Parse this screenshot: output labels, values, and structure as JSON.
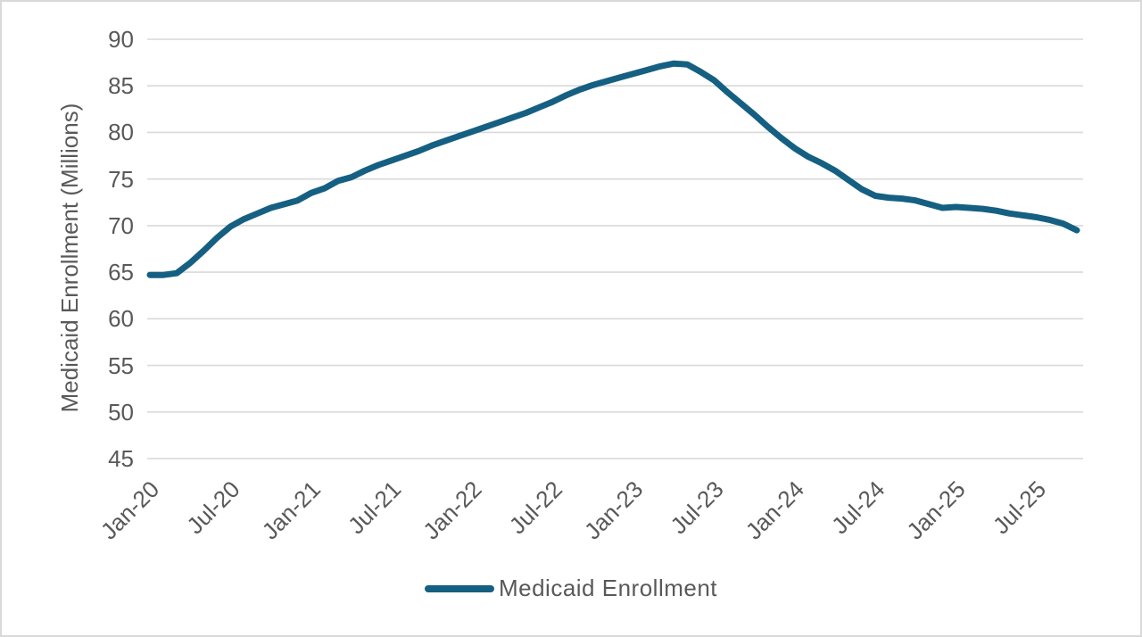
{
  "colors": {
    "line": "#156082",
    "grid": "#d9d9d9",
    "text": "#595959",
    "figure_border": "#d9d9d9"
  },
  "legend": {
    "label": "Medicaid Enrollment",
    "swatch": "line-swatch"
  },
  "chart_data": {
    "type": "line",
    "title": "",
    "xlabel": "",
    "ylabel": "Medicaid Enrollment (Millions)",
    "ylim": [
      45,
      90
    ],
    "yticks": [
      90,
      85,
      80,
      75,
      70,
      65,
      60,
      55,
      50,
      45
    ],
    "grid": "horizontal",
    "legend_position": "bottom",
    "x_tick_labels": [
      "Jan-20",
      "Jul-20",
      "Jan-21",
      "Jul-21",
      "Jan-22",
      "Jul-22",
      "Jan-23",
      "Jul-23",
      "Jan-24",
      "Jul-24",
      "Jan-25",
      "Jul-25"
    ],
    "x_tick_month_indices": [
      0,
      6,
      12,
      18,
      24,
      30,
      36,
      42,
      48,
      54,
      60,
      66
    ],
    "categories": [
      "Jan-20",
      "Feb-20",
      "Mar-20",
      "Apr-20",
      "May-20",
      "Jun-20",
      "Jul-20",
      "Aug-20",
      "Sep-20",
      "Oct-20",
      "Nov-20",
      "Dec-20",
      "Jan-21",
      "Feb-21",
      "Mar-21",
      "Apr-21",
      "May-21",
      "Jun-21",
      "Jul-21",
      "Aug-21",
      "Sep-21",
      "Oct-21",
      "Nov-21",
      "Dec-21",
      "Jan-22",
      "Feb-22",
      "Mar-22",
      "Apr-22",
      "May-22",
      "Jun-22",
      "Jul-22",
      "Aug-22",
      "Sep-22",
      "Oct-22",
      "Nov-22",
      "Dec-22",
      "Jan-23",
      "Feb-23",
      "Mar-23",
      "Apr-23",
      "May-23",
      "Jun-23",
      "Jul-23",
      "Aug-23",
      "Sep-23",
      "Oct-23",
      "Nov-23",
      "Dec-23",
      "Jan-24",
      "Feb-24",
      "Mar-24",
      "Apr-24",
      "May-24",
      "Jun-24",
      "Jul-24",
      "Aug-24",
      "Sep-24",
      "Oct-24",
      "Nov-24",
      "Dec-24",
      "Jan-25",
      "Feb-25",
      "Mar-25",
      "Apr-25",
      "May-25",
      "Jun-25",
      "Jul-25",
      "Aug-25",
      "Sep-25",
      "Oct-25"
    ],
    "series": [
      {
        "name": "Medicaid Enrollment",
        "values": [
          64.7,
          64.7,
          64.9,
          66.0,
          67.3,
          68.7,
          69.9,
          70.7,
          71.3,
          71.9,
          72.3,
          72.7,
          73.5,
          74.0,
          74.8,
          75.2,
          75.9,
          76.5,
          77.0,
          77.5,
          78.0,
          78.6,
          79.1,
          79.6,
          80.1,
          80.6,
          81.1,
          81.6,
          82.1,
          82.7,
          83.3,
          84.0,
          84.6,
          85.1,
          85.5,
          85.9,
          86.3,
          86.7,
          87.1,
          87.4,
          87.3,
          86.5,
          85.6,
          84.3,
          83.1,
          81.9,
          80.6,
          79.4,
          78.3,
          77.4,
          76.7,
          75.9,
          74.9,
          73.9,
          73.2,
          73.0,
          72.9,
          72.7,
          72.3,
          71.9,
          72.0,
          71.9,
          71.8,
          71.6,
          71.3,
          71.1,
          70.9,
          70.6,
          70.2,
          69.5
        ]
      }
    ]
  }
}
